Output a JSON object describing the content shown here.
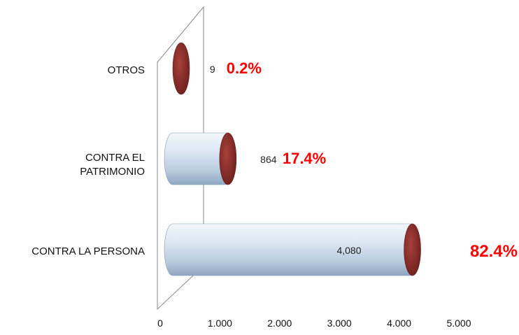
{
  "chart_data": {
    "type": "bar",
    "orientation": "horizontal",
    "categories": [
      "OTROS",
      "CONTRA EL PATRIMONIO",
      "CONTRA LA PERSONA"
    ],
    "category_lines": [
      [
        "OTROS"
      ],
      [
        "CONTRA EL",
        "PATRIMONIO"
      ],
      [
        "CONTRA LA PERSONA"
      ]
    ],
    "values": [
      9,
      864,
      4080
    ],
    "value_labels": [
      "9",
      "864",
      "4,080"
    ],
    "percent_labels": [
      "0.2%",
      "17.4%",
      "82.4%"
    ],
    "xlim": [
      0,
      5000
    ],
    "x_ticks": [
      0,
      1000,
      2000,
      3000,
      4000,
      5000
    ],
    "x_tick_labels": [
      "0",
      "1.000",
      "2.000",
      "3.000",
      "4.000",
      "5.000"
    ],
    "grid": false,
    "legend": "none",
    "colors": {
      "bar_body": "#bcd0e6",
      "bar_highlight": "#f2f7fc",
      "bar_shadow": "#8ea6c0",
      "bar_end": "#8b2e2a",
      "bar_end_dark": "#6a1f1c",
      "percent_text": "#ff0000",
      "text": "#111111"
    }
  }
}
